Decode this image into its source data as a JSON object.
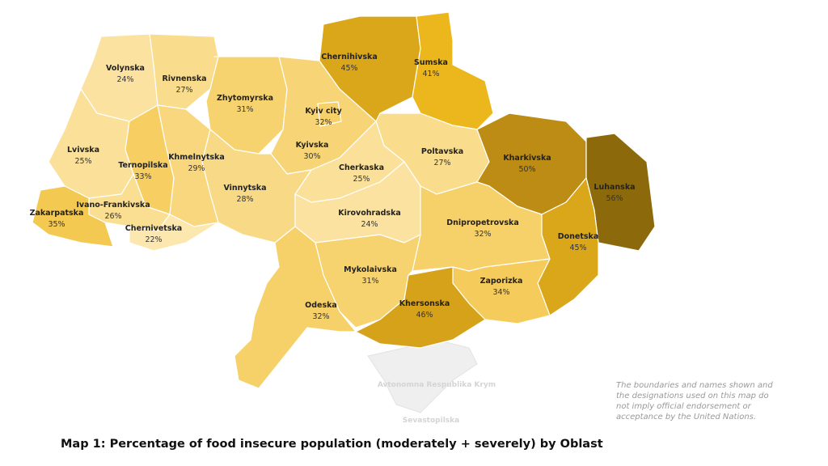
{
  "title": "Map 1: Percentage of food insecure population (moderately + severely) by Oblast",
  "disclaimer": [
    "The boundaries and names shown and",
    "the designations used on this map do",
    "not imply official endorsement or",
    "acceptance by the United Nations."
  ],
  "crimea": {
    "name": "Avtonomna Respublika Krym",
    "city": "Sevastopilska"
  },
  "regions": [
    {
      "name": "Volynska",
      "value": 24,
      "label": "24%"
    },
    {
      "name": "Rivnenska",
      "value": 27,
      "label": "27%"
    },
    {
      "name": "Zhytomyrska",
      "value": 31,
      "label": "31%"
    },
    {
      "name": "Kyivska",
      "value": 30,
      "label": "30%"
    },
    {
      "name": "Kyiv city",
      "value": 32,
      "label": "32%"
    },
    {
      "name": "Chernihivska",
      "value": 45,
      "label": "45%"
    },
    {
      "name": "Sumska",
      "value": 41,
      "label": "41%"
    },
    {
      "name": "Poltavska",
      "value": 27,
      "label": "27%"
    },
    {
      "name": "Kharkivska",
      "value": 50,
      "label": "50%"
    },
    {
      "name": "Luhanska",
      "value": 56,
      "label": "56%"
    },
    {
      "name": "Lvivska",
      "value": 25,
      "label": "25%"
    },
    {
      "name": "Ternopilska",
      "value": 33,
      "label": "33%"
    },
    {
      "name": "Khmelnytska",
      "value": 29,
      "label": "29%"
    },
    {
      "name": "Cherkaska",
      "value": 25,
      "label": "25%"
    },
    {
      "name": "Vinnytska",
      "value": 28,
      "label": "28%"
    },
    {
      "name": "Zakarpatska",
      "value": 35,
      "label": "35%"
    },
    {
      "name": "Ivano-Frankivska",
      "value": 26,
      "label": "26%"
    },
    {
      "name": "Chernivetska",
      "value": 22,
      "label": "22%"
    },
    {
      "name": "Kirovohradska",
      "value": 24,
      "label": "24%"
    },
    {
      "name": "Dnipropetrovska",
      "value": 32,
      "label": "32%"
    },
    {
      "name": "Donetska",
      "value": 45,
      "label": "45%"
    },
    {
      "name": "Mykolaivska",
      "value": 31,
      "label": "31%"
    },
    {
      "name": "Zaporizka",
      "value": 34,
      "label": "34%"
    },
    {
      "name": "Odeska",
      "value": 32,
      "label": "32%"
    },
    {
      "name": "Khersonska",
      "value": 46,
      "label": "46%"
    }
  ]
}
